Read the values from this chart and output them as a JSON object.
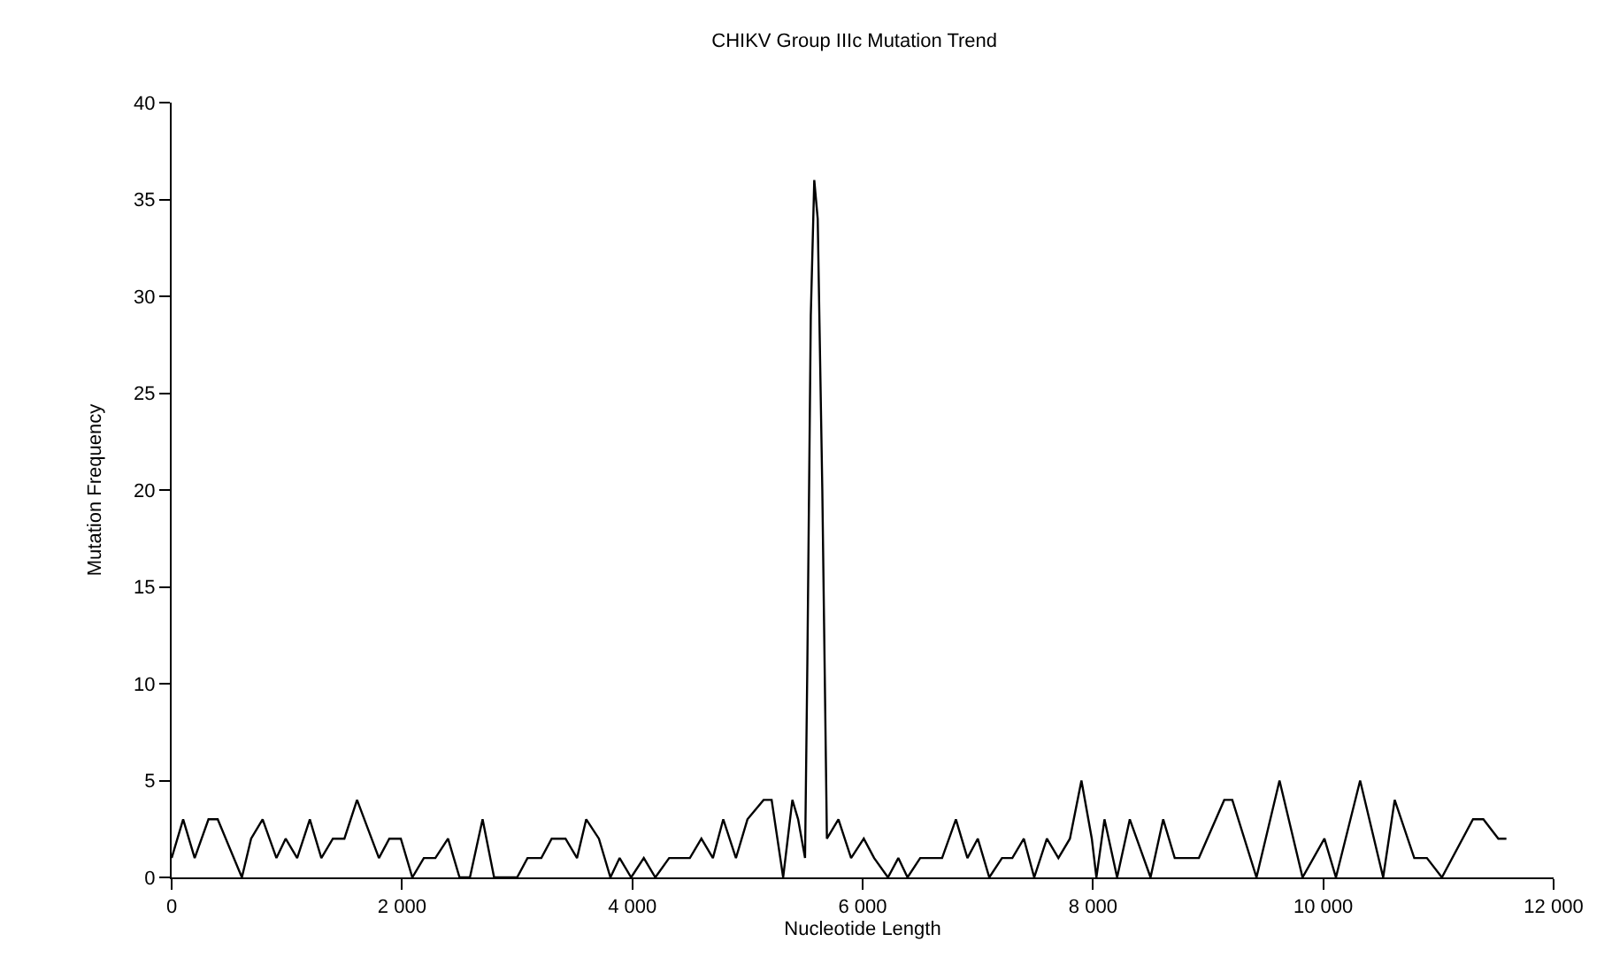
{
  "chart_data": {
    "type": "line",
    "title": "CHIKV Group IIIc Mutation Trend",
    "xlabel": "Nucleotide Length",
    "ylabel": "Mutation Frequency",
    "x": [
      0,
      100,
      200,
      320,
      400,
      610,
      690,
      790,
      910,
      990,
      1090,
      1200,
      1300,
      1400,
      1500,
      1610,
      1800,
      1890,
      1990,
      2090,
      2190,
      2290,
      2400,
      2500,
      2590,
      2700,
      2800,
      3000,
      3090,
      3210,
      3300,
      3420,
      3520,
      3600,
      3710,
      3810,
      3890,
      3990,
      4100,
      4200,
      4320,
      4500,
      4600,
      4700,
      4790,
      4900,
      5000,
      5140,
      5210,
      5310,
      5390,
      5440,
      5500,
      5520,
      5550,
      5580,
      5610,
      5650,
      5690,
      5790,
      5900,
      6010,
      6100,
      6220,
      6310,
      6390,
      6500,
      6690,
      6810,
      6910,
      7000,
      7100,
      7210,
      7300,
      7400,
      7490,
      7600,
      7700,
      7800,
      7900,
      7990,
      8030,
      8100,
      8210,
      8320,
      8500,
      8610,
      8710,
      8920,
      9140,
      9210,
      9420,
      9620,
      9820,
      10010,
      10110,
      10320,
      10520,
      10620,
      10790,
      10900,
      11030,
      11300,
      11390,
      11520,
      11590
    ],
    "series": [
      {
        "color": "#000000",
        "values": [
          1,
          3,
          1,
          3,
          3,
          0,
          2,
          3,
          1,
          2,
          1,
          3,
          1,
          2,
          2,
          4,
          1,
          2,
          2,
          0,
          1,
          1,
          2,
          0,
          0,
          3,
          0,
          0,
          1,
          1,
          2,
          2,
          1,
          3,
          2,
          0,
          1,
          0,
          1,
          0,
          1,
          1,
          2,
          1,
          3,
          1,
          3,
          4,
          4,
          0,
          4,
          3,
          1,
          11,
          29,
          36,
          34,
          20,
          2,
          3,
          1,
          2,
          1,
          0,
          1,
          0,
          1,
          1,
          3,
          1,
          2,
          0,
          1,
          1,
          2,
          0,
          2,
          1,
          2,
          5,
          2,
          0,
          3,
          0,
          3,
          0,
          3,
          1,
          1,
          4,
          4,
          0,
          5,
          0,
          2,
          0,
          5,
          0,
          4,
          1,
          1,
          0,
          3,
          3,
          2,
          2
        ]
      }
    ],
    "xlim": [
      0,
      12000
    ],
    "ylim": [
      0,
      40
    ],
    "xticks": [
      0,
      {
        "value": 2000,
        "label": "2 000"
      },
      {
        "value": 4000,
        "label": "4 000"
      },
      {
        "value": 6000,
        "label": "6 000"
      },
      {
        "value": 8000,
        "label": "8 000"
      },
      {
        "value": 10000,
        "label": "10 000"
      },
      {
        "value": 12000,
        "label": "12 000"
      }
    ],
    "yticks": [
      0,
      5,
      10,
      15,
      20,
      25,
      30,
      35,
      40
    ],
    "marker": "none",
    "line_style": "solid"
  }
}
